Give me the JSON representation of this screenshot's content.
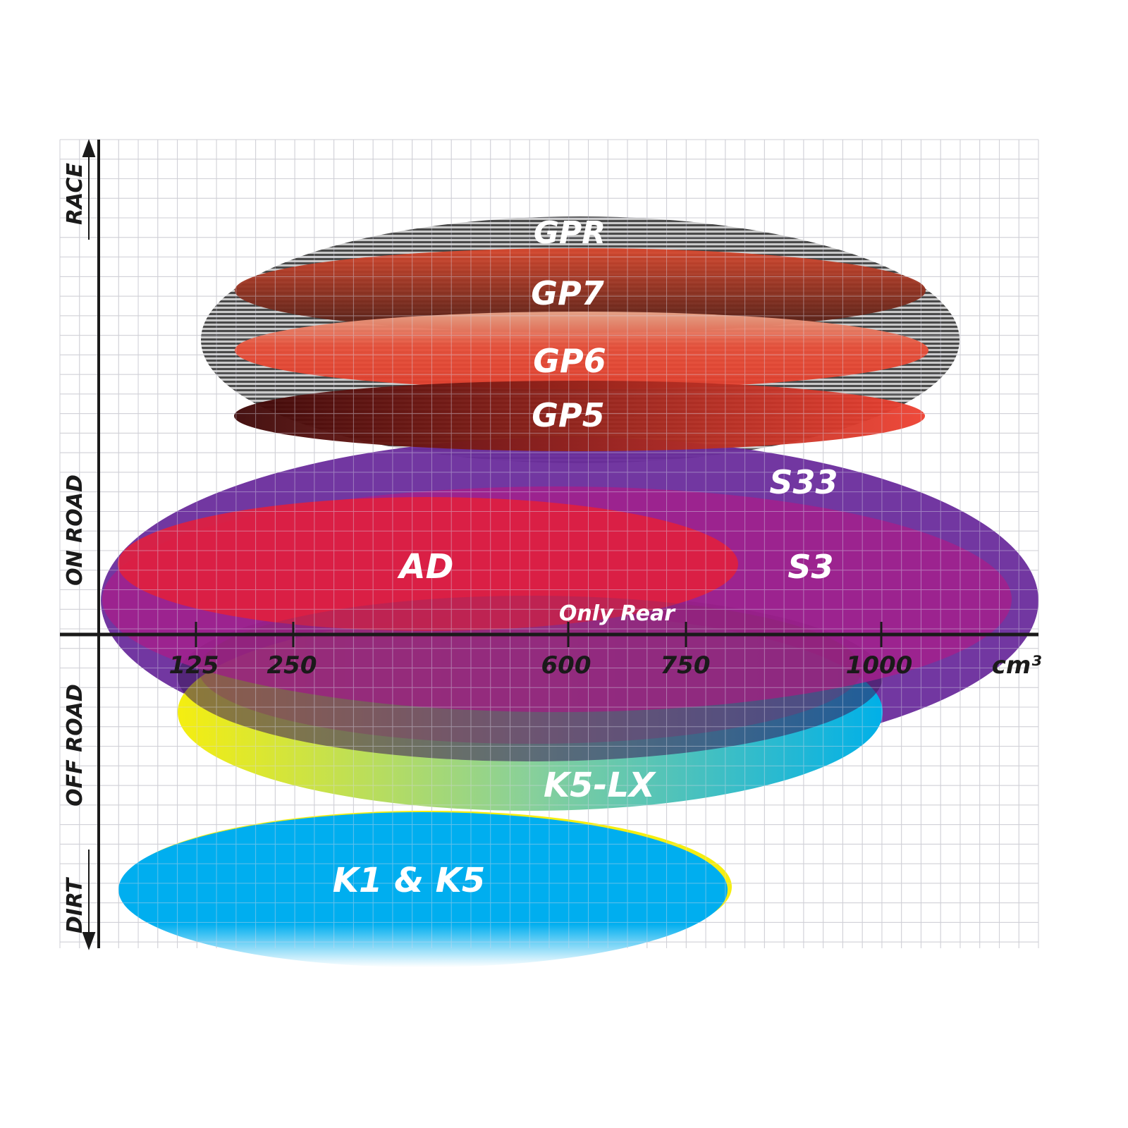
{
  "side_labels": {
    "race": "RACE",
    "on_road": "ON ROAD",
    "off_road": "OFF ROAD",
    "dirt": "DIRT"
  },
  "x_axis": {
    "ticks": [
      "125",
      "250",
      "600",
      "750",
      "1000"
    ],
    "unit": "cm³"
  },
  "products": {
    "gpr": "GPR",
    "gp7": "GP7",
    "gp6": "GP6",
    "gp5": "GP5",
    "s33": "S33",
    "s3": "S3",
    "ad": "AD",
    "only_rear": "Only Rear",
    "k5lx": "K5-LX",
    "k1k5": "K1 & K5"
  },
  "colors": {
    "s33": "#6a2c9c",
    "s3": "#a3208c",
    "ad": "#e0203f",
    "k1k5": "#00aeef",
    "grid": "#c8c8c8",
    "axis": "#1a1a1a"
  }
}
